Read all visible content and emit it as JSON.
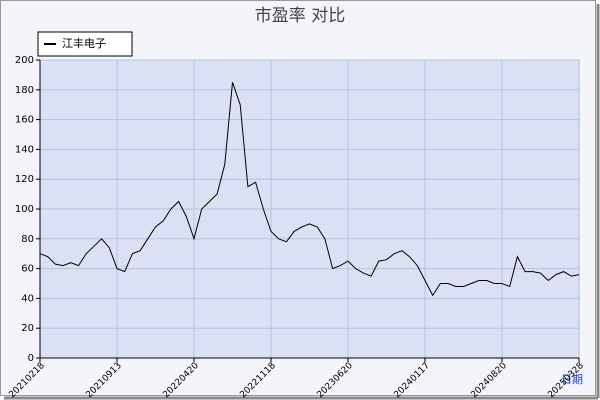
{
  "chart_data": {
    "type": "line",
    "title": "市盈率  对比",
    "x_label": "日期",
    "series": [
      {
        "name": "江丰电子",
        "color": "#000000",
        "values": [
          70,
          68,
          63,
          62,
          64,
          62,
          70,
          75,
          80,
          74,
          60,
          58,
          70,
          72,
          80,
          88,
          92,
          100,
          105,
          95,
          80,
          100,
          105,
          110,
          130,
          185,
          170,
          115,
          118,
          100,
          85,
          80,
          78,
          85,
          88,
          90,
          88,
          80,
          60,
          62,
          65,
          60,
          57,
          55,
          65,
          66,
          70,
          72,
          68,
          62,
          52,
          42,
          50,
          50,
          48,
          48,
          50,
          52,
          52,
          50,
          50,
          48,
          68,
          58,
          58,
          57,
          52,
          56,
          58,
          55,
          56
        ]
      }
    ],
    "xlim": [
      0,
      70
    ],
    "xticks": [
      {
        "value": 0,
        "label": "20210218"
      },
      {
        "value": 10,
        "label": "20210913"
      },
      {
        "value": 20,
        "label": "20220420"
      },
      {
        "value": 30,
        "label": "20221118"
      },
      {
        "value": 40,
        "label": "20230620"
      },
      {
        "value": 50,
        "label": "20240117"
      },
      {
        "value": 60,
        "label": "20240820"
      },
      {
        "value": 70,
        "label": "20250328"
      }
    ],
    "ylim": [
      0,
      200
    ],
    "yticks": [
      0,
      20,
      40,
      60,
      80,
      100,
      120,
      140,
      160,
      180,
      200
    ],
    "grid": true
  }
}
